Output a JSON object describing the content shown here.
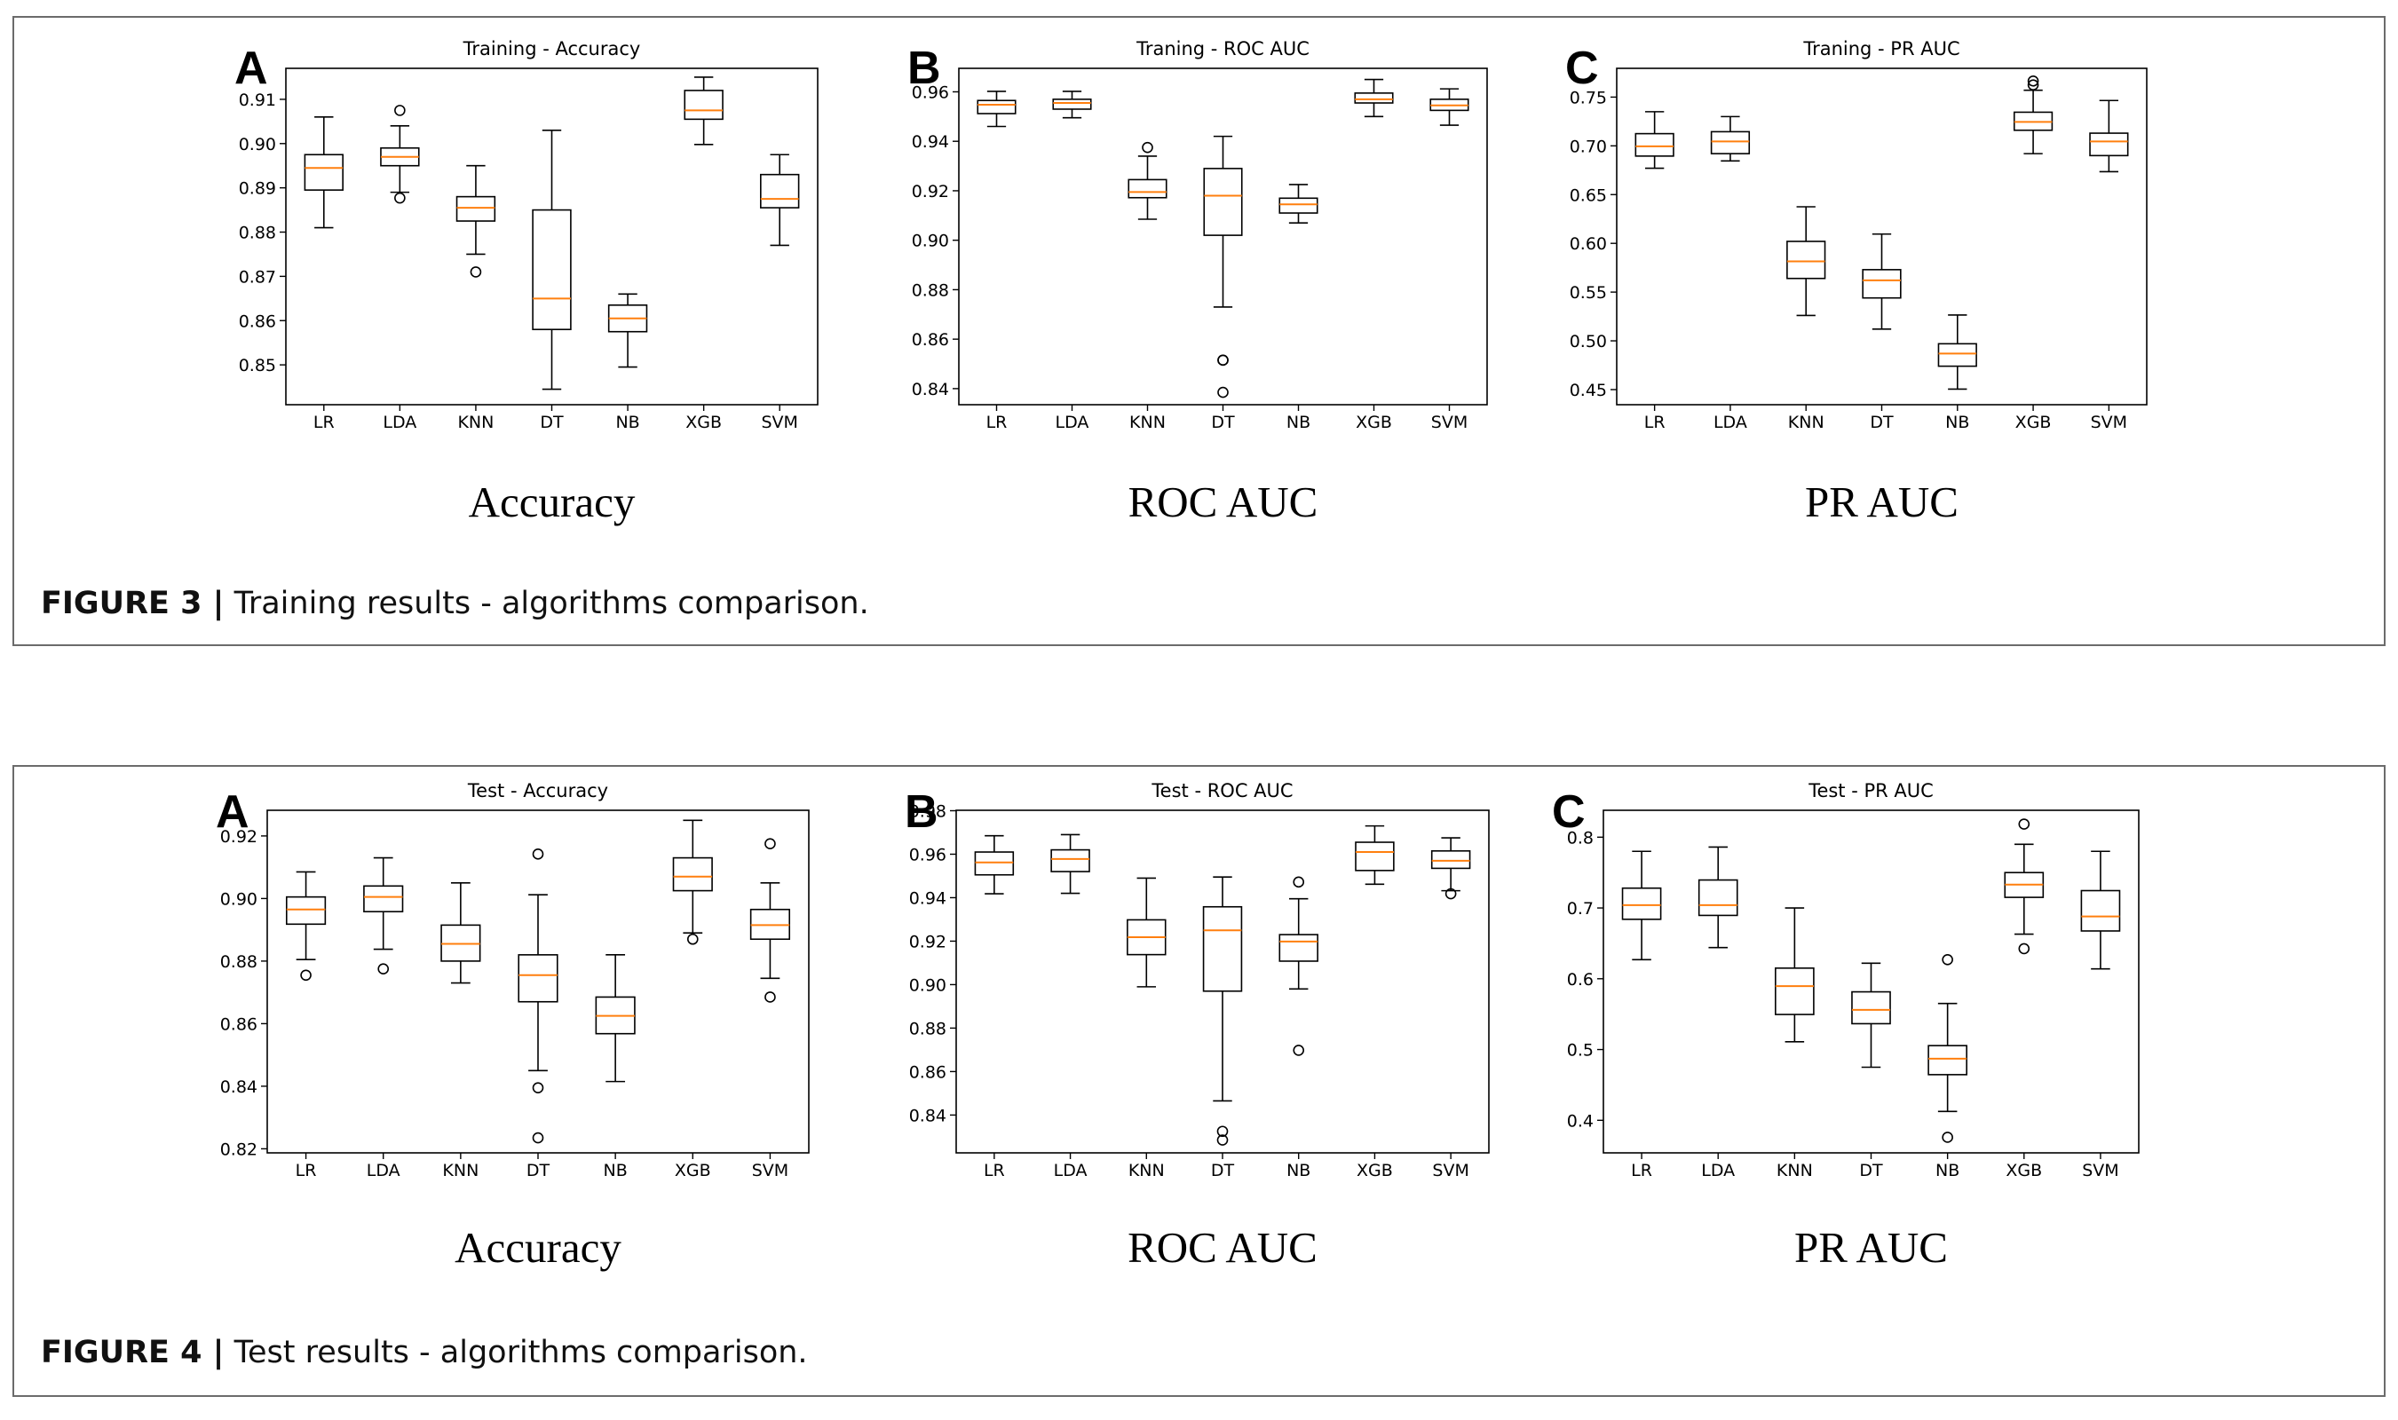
{
  "figures": [
    {
      "id": "fig3",
      "caption_label": "FIGURE 3 |",
      "caption_text": "Training results - algorithms comparison."
    },
    {
      "id": "fig4",
      "caption_label": "FIGURE 4 |",
      "caption_text": "Test results - algorithms comparison."
    }
  ],
  "colors": {
    "median": "#ff7f0e",
    "box": "#000000"
  },
  "chart_data": [
    {
      "type": "box",
      "figure": 0,
      "panel": "A",
      "title": "Training - Accuracy",
      "subtitle": "Accuracy",
      "categories": [
        "LR",
        "LDA",
        "KNN",
        "DT",
        "NB",
        "XGB",
        "SVM"
      ],
      "ylim": [
        0.841,
        0.917
      ],
      "yticks": [
        0.85,
        0.86,
        0.87,
        0.88,
        0.89,
        0.9,
        0.91
      ],
      "ytick_labels": [
        "0.85",
        "0.86",
        "0.87",
        "0.88",
        "0.89",
        "0.90",
        "0.91"
      ],
      "boxes": [
        {
          "wlo": 0.881,
          "q1": 0.8895,
          "med": 0.8945,
          "q3": 0.8975,
          "whi": 0.906,
          "out": []
        },
        {
          "wlo": 0.889,
          "q1": 0.895,
          "med": 0.897,
          "q3": 0.899,
          "whi": 0.904,
          "out": [
            0.9075,
            0.8877
          ]
        },
        {
          "wlo": 0.875,
          "q1": 0.8825,
          "med": 0.8855,
          "q3": 0.888,
          "whi": 0.895,
          "out": [
            0.871
          ]
        },
        {
          "wlo": 0.8445,
          "q1": 0.858,
          "med": 0.865,
          "q3": 0.885,
          "whi": 0.903,
          "out": []
        },
        {
          "wlo": 0.8495,
          "q1": 0.8575,
          "med": 0.8605,
          "q3": 0.8635,
          "whi": 0.866,
          "out": []
        },
        {
          "wlo": 0.8998,
          "q1": 0.9055,
          "med": 0.9075,
          "q3": 0.912,
          "whi": 0.915,
          "out": []
        },
        {
          "wlo": 0.877,
          "q1": 0.8855,
          "med": 0.8875,
          "q3": 0.893,
          "whi": 0.8975,
          "out": []
        }
      ]
    },
    {
      "type": "box",
      "figure": 0,
      "panel": "B",
      "title": "Traning - ROC AUC",
      "subtitle": "ROC AUC",
      "categories": [
        "LR",
        "LDA",
        "KNN",
        "DT",
        "NB",
        "XGB",
        "SVM"
      ],
      "ylim": [
        0.8335,
        0.9695
      ],
      "yticks": [
        0.84,
        0.86,
        0.88,
        0.9,
        0.92,
        0.94,
        0.96
      ],
      "ytick_labels": [
        "0.84",
        "0.86",
        "0.88",
        "0.90",
        "0.92",
        "0.94",
        "0.96"
      ],
      "boxes": [
        {
          "wlo": 0.946,
          "q1": 0.9512,
          "med": 0.9548,
          "q3": 0.9565,
          "whi": 0.9602,
          "out": []
        },
        {
          "wlo": 0.9495,
          "q1": 0.953,
          "med": 0.9555,
          "q3": 0.957,
          "whi": 0.9602,
          "out": []
        },
        {
          "wlo": 0.9085,
          "q1": 0.9172,
          "med": 0.9195,
          "q3": 0.9245,
          "whi": 0.934,
          "out": [
            0.9375
          ]
        },
        {
          "wlo": 0.873,
          "q1": 0.902,
          "med": 0.918,
          "q3": 0.929,
          "whi": 0.942,
          "out": [
            0.8515,
            0.8515,
            0.8385
          ]
        },
        {
          "wlo": 0.907,
          "q1": 0.911,
          "med": 0.9145,
          "q3": 0.917,
          "whi": 0.9225,
          "out": []
        },
        {
          "wlo": 0.95,
          "q1": 0.9555,
          "med": 0.957,
          "q3": 0.9595,
          "whi": 0.965,
          "out": []
        },
        {
          "wlo": 0.9465,
          "q1": 0.9525,
          "med": 0.9545,
          "q3": 0.957,
          "whi": 0.9612,
          "out": []
        }
      ]
    },
    {
      "type": "box",
      "figure": 0,
      "panel": "C",
      "title": "Traning - PR AUC",
      "subtitle": "PR AUC",
      "categories": [
        "LR",
        "LDA",
        "KNN",
        "DT",
        "NB",
        "XGB",
        "SVM"
      ],
      "ylim": [
        0.4345,
        0.7795
      ],
      "yticks": [
        0.45,
        0.5,
        0.55,
        0.6,
        0.65,
        0.7,
        0.75
      ],
      "ytick_labels": [
        "0.45",
        "0.50",
        "0.55",
        "0.60",
        "0.65",
        "0.70",
        "0.75"
      ],
      "boxes": [
        {
          "wlo": 0.677,
          "q1": 0.6895,
          "med": 0.6995,
          "q3": 0.7125,
          "whi": 0.735,
          "out": []
        },
        {
          "wlo": 0.6845,
          "q1": 0.692,
          "med": 0.7045,
          "q3": 0.7145,
          "whi": 0.73,
          "out": []
        },
        {
          "wlo": 0.526,
          "q1": 0.564,
          "med": 0.5815,
          "q3": 0.602,
          "whi": 0.6375,
          "out": []
        },
        {
          "wlo": 0.512,
          "q1": 0.544,
          "med": 0.562,
          "q3": 0.573,
          "whi": 0.6095,
          "out": []
        },
        {
          "wlo": 0.4505,
          "q1": 0.474,
          "med": 0.487,
          "q3": 0.497,
          "whi": 0.5265,
          "out": []
        },
        {
          "wlo": 0.692,
          "q1": 0.716,
          "med": 0.7245,
          "q3": 0.7345,
          "whi": 0.757,
          "out": [
            0.7625,
            0.7665
          ]
        },
        {
          "wlo": 0.6735,
          "q1": 0.69,
          "med": 0.7045,
          "q3": 0.713,
          "whi": 0.7465,
          "out": []
        }
      ]
    },
    {
      "type": "box",
      "figure": 1,
      "panel": "A",
      "title": "Test - Accuracy",
      "subtitle": "Accuracy",
      "categories": [
        "LR",
        "LDA",
        "KNN",
        "DT",
        "NB",
        "XGB",
        "SVM"
      ],
      "ylim": [
        0.8187,
        0.9282
      ],
      "yticks": [
        0.82,
        0.84,
        0.86,
        0.88,
        0.9,
        0.92
      ],
      "ytick_labels": [
        "0.82",
        "0.84",
        "0.86",
        "0.88",
        "0.90",
        "0.92"
      ],
      "boxes": [
        {
          "wlo": 0.8805,
          "q1": 0.8918,
          "med": 0.8965,
          "q3": 0.9005,
          "whi": 0.9085,
          "out": [
            0.8755
          ]
        },
        {
          "wlo": 0.8838,
          "q1": 0.8958,
          "med": 0.9005,
          "q3": 0.904,
          "whi": 0.913,
          "out": [
            0.8775
          ]
        },
        {
          "wlo": 0.873,
          "q1": 0.88,
          "med": 0.8855,
          "q3": 0.8915,
          "whi": 0.905,
          "out": []
        },
        {
          "wlo": 0.845,
          "q1": 0.867,
          "med": 0.8755,
          "q3": 0.882,
          "whi": 0.9012,
          "out": [
            0.9142,
            0.8395,
            0.8235
          ]
        },
        {
          "wlo": 0.8415,
          "q1": 0.8568,
          "med": 0.8625,
          "q3": 0.8685,
          "whi": 0.882,
          "out": []
        },
        {
          "wlo": 0.889,
          "q1": 0.9025,
          "med": 0.907,
          "q3": 0.913,
          "whi": 0.925,
          "out": [
            0.887
          ]
        },
        {
          "wlo": 0.8745,
          "q1": 0.887,
          "med": 0.8915,
          "q3": 0.8965,
          "whi": 0.905,
          "out": [
            0.9175,
            0.8685
          ]
        }
      ]
    },
    {
      "type": "box",
      "figure": 1,
      "panel": "B",
      "title": "Test - ROC AUC",
      "subtitle": "ROC AUC",
      "categories": [
        "LR",
        "LDA",
        "KNN",
        "DT",
        "NB",
        "XGB",
        "SVM"
      ],
      "ylim": [
        0.8226,
        0.9802
      ],
      "yticks": [
        0.84,
        0.86,
        0.88,
        0.9,
        0.92,
        0.94,
        0.96,
        0.98
      ],
      "ytick_labels": [
        "0.84",
        "0.86",
        "0.88",
        "0.90",
        "0.92",
        "0.94",
        "0.96",
        "0.98"
      ],
      "boxes": [
        {
          "wlo": 0.9418,
          "q1": 0.9505,
          "med": 0.9562,
          "q3": 0.961,
          "whi": 0.9685,
          "out": []
        },
        {
          "wlo": 0.942,
          "q1": 0.952,
          "med": 0.9578,
          "q3": 0.962,
          "whi": 0.969,
          "out": []
        },
        {
          "wlo": 0.899,
          "q1": 0.9138,
          "med": 0.9218,
          "q3": 0.9298,
          "whi": 0.949,
          "out": []
        },
        {
          "wlo": 0.8465,
          "q1": 0.897,
          "med": 0.925,
          "q3": 0.9358,
          "whi": 0.9495,
          "out": [
            0.8325,
            0.8285
          ]
        },
        {
          "wlo": 0.898,
          "q1": 0.9108,
          "med": 0.9198,
          "q3": 0.923,
          "whi": 0.9395,
          "out": [
            0.9472,
            0.8698
          ]
        },
        {
          "wlo": 0.9462,
          "q1": 0.9525,
          "med": 0.961,
          "q3": 0.9655,
          "whi": 0.973,
          "out": []
        },
        {
          "wlo": 0.9432,
          "q1": 0.9535,
          "med": 0.957,
          "q3": 0.9615,
          "whi": 0.9675,
          "out": [
            0.9418
          ]
        }
      ]
    },
    {
      "type": "box",
      "figure": 1,
      "panel": "C",
      "title": "Test - PR AUC",
      "subtitle": "PR AUC",
      "categories": [
        "LR",
        "LDA",
        "KNN",
        "DT",
        "NB",
        "XGB",
        "SVM"
      ],
      "ylim": [
        0.354,
        0.838
      ],
      "yticks": [
        0.4,
        0.5,
        0.6,
        0.7,
        0.8
      ],
      "ytick_labels": [
        "0.4",
        "0.5",
        "0.6",
        "0.7",
        "0.8"
      ],
      "boxes": [
        {
          "wlo": 0.627,
          "q1": 0.684,
          "med": 0.704,
          "q3": 0.728,
          "whi": 0.78,
          "out": []
        },
        {
          "wlo": 0.644,
          "q1": 0.6895,
          "med": 0.704,
          "q3": 0.7395,
          "whi": 0.786,
          "out": []
        },
        {
          "wlo": 0.511,
          "q1": 0.5495,
          "med": 0.5895,
          "q3": 0.615,
          "whi": 0.7,
          "out": []
        },
        {
          "wlo": 0.475,
          "q1": 0.5365,
          "med": 0.556,
          "q3": 0.5815,
          "whi": 0.622,
          "out": []
        },
        {
          "wlo": 0.4125,
          "q1": 0.4645,
          "med": 0.487,
          "q3": 0.5055,
          "whi": 0.565,
          "out": [
            0.627,
            0.376
          ]
        },
        {
          "wlo": 0.663,
          "q1": 0.715,
          "med": 0.733,
          "q3": 0.75,
          "whi": 0.79,
          "out": [
            0.8185,
            0.6425
          ]
        },
        {
          "wlo": 0.614,
          "q1": 0.6675,
          "med": 0.688,
          "q3": 0.7245,
          "whi": 0.78,
          "out": []
        }
      ]
    }
  ]
}
